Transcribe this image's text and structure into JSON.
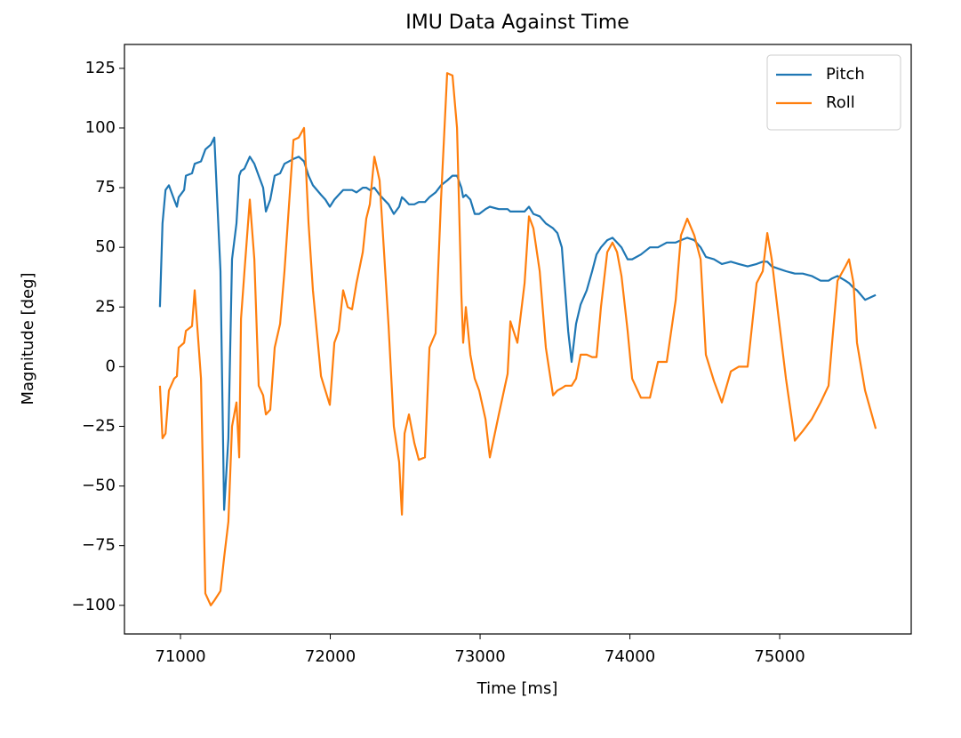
{
  "chart_data": {
    "type": "line",
    "title": "IMU Data Against Time",
    "x_label": "Time [ms]",
    "y_label": "Magnitude [deg]",
    "x": [
      70863,
      70880,
      70900,
      70923,
      70958,
      70976,
      70988,
      71024,
      71036,
      71077,
      71095,
      71137,
      71166,
      71202,
      71226,
      71267,
      71291,
      71320,
      71344,
      71374,
      71392,
      71404,
      71427,
      71463,
      71493,
      71522,
      71552,
      71570,
      71599,
      71629,
      71665,
      71694,
      71754,
      71789,
      71825,
      71855,
      71884,
      71938,
      71967,
      71997,
      72027,
      72056,
      72086,
      72116,
      72145,
      72175,
      72217,
      72240,
      72264,
      72294,
      72329,
      72359,
      72389,
      72424,
      72460,
      72478,
      72496,
      72525,
      72561,
      72591,
      72632,
      72662,
      72703,
      72739,
      72780,
      72816,
      72846,
      72875,
      72887,
      72905,
      72935,
      72964,
      72994,
      73036,
      73065,
      73125,
      73184,
      73202,
      73249,
      73297,
      73326,
      73356,
      73398,
      73439,
      73487,
      73516,
      73546,
      73570,
      73588,
      73611,
      73641,
      73671,
      73712,
      73748,
      73777,
      73807,
      73849,
      73884,
      73914,
      73944,
      73985,
      74015,
      74074,
      74134,
      74187,
      74246,
      74306,
      74341,
      74383,
      74430,
      74472,
      74507,
      74561,
      74614,
      74674,
      74727,
      74786,
      74846,
      74887,
      74917,
      74947,
      74994,
      75042,
      75101,
      75154,
      75214,
      75273,
      75326,
      75350,
      75386,
      75439,
      75463,
      75493,
      75516,
      75570,
      75641
    ],
    "series": [
      {
        "name": "Pitch",
        "color": "#1f77b4",
        "values": [
          25,
          60,
          74,
          76,
          70,
          67,
          71,
          74,
          80,
          81,
          85,
          86,
          91,
          93,
          96,
          40,
          -60,
          -30,
          45,
          60,
          80,
          82,
          83,
          88,
          85,
          80,
          75,
          65,
          70,
          80,
          81,
          85,
          87,
          88,
          86,
          80,
          76,
          72,
          70,
          67,
          70,
          72,
          74,
          74,
          74,
          73,
          75,
          75,
          74,
          75,
          72,
          70,
          68,
          64,
          67,
          71,
          70,
          68,
          68,
          69,
          69,
          71,
          73,
          76,
          78,
          80,
          80,
          75,
          71,
          72,
          70,
          64,
          64,
          66,
          67,
          66,
          66,
          65,
          65,
          65,
          67,
          64,
          63,
          60,
          58,
          56,
          50,
          30,
          15,
          2,
          18,
          26,
          32,
          40,
          47,
          50,
          53,
          54,
          52,
          50,
          45,
          45,
          47,
          50,
          50,
          52,
          52,
          53,
          54,
          53,
          50,
          46,
          45,
          43,
          44,
          43,
          42,
          43,
          44,
          44,
          42,
          41,
          40,
          39,
          39,
          38,
          36,
          36,
          37,
          38,
          36,
          35,
          33,
          32,
          28,
          30
        ]
      },
      {
        "name": "Roll",
        "color": "#ff7f0e",
        "values": [
          -8,
          -30,
          -28,
          -10,
          -5,
          -4,
          8,
          10,
          15,
          17,
          32,
          -5,
          -95,
          -100,
          -98,
          -94,
          -80,
          -65,
          -25,
          -15,
          -38,
          20,
          40,
          70,
          45,
          -8,
          -12,
          -20,
          -18,
          8,
          18,
          40,
          95,
          96,
          100,
          60,
          32,
          -4,
          -10,
          -16,
          10,
          15,
          32,
          25,
          24,
          35,
          48,
          62,
          68,
          88,
          78,
          48,
          17,
          -25,
          -40,
          -62,
          -28,
          -20,
          -32,
          -39,
          -38,
          8,
          14,
          70,
          123,
          122,
          100,
          30,
          10,
          25,
          5,
          -5,
          -10,
          -22,
          -38,
          -20,
          -3,
          19,
          10,
          35,
          63,
          58,
          40,
          8,
          -12,
          -10,
          -9,
          -8,
          -8,
          -8,
          -5,
          5,
          5,
          4,
          4,
          25,
          48,
          52,
          48,
          38,
          15,
          -5,
          -13,
          -13,
          2,
          2,
          28,
          55,
          62,
          55,
          45,
          5,
          -6,
          -15,
          -2,
          0,
          0,
          35,
          40,
          56,
          45,
          20,
          -5,
          -31,
          -27,
          -22,
          -15,
          -8,
          10,
          36,
          42,
          45,
          35,
          10,
          -10,
          -26
        ]
      }
    ],
    "xlim": [
      70626,
      75878
    ],
    "ylim": [
      -112,
      135
    ],
    "xticks": [
      71000,
      72000,
      73000,
      74000,
      75000
    ],
    "yticks": [
      {
        "value": -100,
        "label": "−100"
      },
      {
        "value": -75,
        "label": "−75"
      },
      {
        "value": -50,
        "label": "−50"
      },
      {
        "value": -25,
        "label": "−25"
      },
      0,
      25,
      50,
      75,
      100,
      125
    ],
    "grid": false,
    "legend": "upper right"
  }
}
